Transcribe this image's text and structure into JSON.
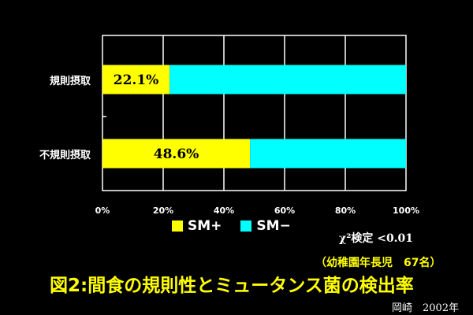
{
  "chart_data": {
    "type": "bar",
    "orientation": "horizontal",
    "stacked": true,
    "categories": [
      "規則摂取",
      "不規則摂取"
    ],
    "series": [
      {
        "name": "SM+",
        "values": [
          22.1,
          48.6
        ],
        "color": "#ffff00"
      },
      {
        "name": "SM−",
        "values": [
          77.9,
          51.4
        ],
        "color": "#00ffff"
      }
    ],
    "data_labels": [
      "22.1%",
      "48.6%"
    ],
    "xlim": [
      0,
      100
    ],
    "x_ticks": [
      "0%",
      "20%",
      "40%",
      "60%",
      "80%",
      "100%"
    ],
    "grid": true,
    "legend_position": "bottom"
  },
  "annotations": {
    "stat_test": "χ²検定 <0.01",
    "sample": "（幼稚園年長児　67名）",
    "figure_title": "図2:間食の規則性とミュータンス菌の検出率",
    "credit": "岡崎　2002年"
  }
}
